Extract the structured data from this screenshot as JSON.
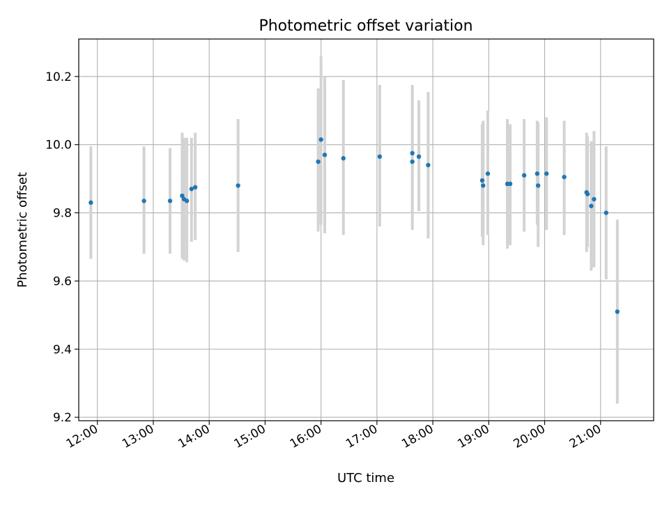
{
  "chart_data": {
    "type": "scatter",
    "title": "Photometric offset variation",
    "xlabel": "UTC time",
    "ylabel": "Photometric offset",
    "xlim": [
      "11:40",
      "21:57"
    ],
    "ylim": [
      9.19,
      10.31
    ],
    "grid": true,
    "x_ticks": [
      "12:00",
      "13:00",
      "14:00",
      "15:00",
      "16:00",
      "17:00",
      "18:00",
      "19:00",
      "20:00",
      "21:00"
    ],
    "y_ticks": [
      "9.2",
      "9.4",
      "9.6",
      "9.8",
      "10.0",
      "10.2"
    ],
    "colors": {
      "point": "#1f77b4",
      "errorbar": "#d3d3d3",
      "grid": "#b0b0b0"
    },
    "series": [
      {
        "points": [
          {
            "x": "11:53",
            "y": 9.83,
            "ylow": 9.665,
            "yhigh": 9.995
          },
          {
            "x": "12:50",
            "y": 9.835,
            "ylow": 9.68,
            "yhigh": 9.995
          },
          {
            "x": "13:18",
            "y": 9.835,
            "ylow": 9.68,
            "yhigh": 9.99
          },
          {
            "x": "13:31",
            "y": 9.85,
            "ylow": 9.665,
            "yhigh": 10.035
          },
          {
            "x": "13:33",
            "y": 9.84,
            "ylow": 9.66,
            "yhigh": 10.02
          },
          {
            "x": "13:36",
            "y": 9.835,
            "ylow": 9.655,
            "yhigh": 10.02
          },
          {
            "x": "13:41",
            "y": 9.87,
            "ylow": 9.715,
            "yhigh": 10.02
          },
          {
            "x": "13:45",
            "y": 9.875,
            "ylow": 9.72,
            "yhigh": 10.035
          },
          {
            "x": "14:31",
            "y": 9.88,
            "ylow": 9.685,
            "yhigh": 10.075
          },
          {
            "x": "15:57",
            "y": 9.95,
            "ylow": 9.745,
            "yhigh": 10.165
          },
          {
            "x": "16:00",
            "y": 10.015,
            "ylow": 9.765,
            "yhigh": 10.26
          },
          {
            "x": "16:04",
            "y": 9.97,
            "ylow": 9.74,
            "yhigh": 10.2
          },
          {
            "x": "16:24",
            "y": 9.96,
            "ylow": 9.735,
            "yhigh": 10.19
          },
          {
            "x": "17:03",
            "y": 9.965,
            "ylow": 9.76,
            "yhigh": 10.175
          },
          {
            "x": "17:38",
            "y": 9.975,
            "ylow": 9.8,
            "yhigh": 10.155
          },
          {
            "x": "17:38",
            "y": 9.95,
            "ylow": 9.75,
            "yhigh": 10.175
          },
          {
            "x": "17:45",
            "y": 9.965,
            "ylow": 9.805,
            "yhigh": 10.13
          },
          {
            "x": "17:55",
            "y": 9.94,
            "ylow": 9.725,
            "yhigh": 10.155
          },
          {
            "x": "18:53",
            "y": 9.895,
            "ylow": 9.73,
            "yhigh": 10.06
          },
          {
            "x": "18:54",
            "y": 9.88,
            "ylow": 9.705,
            "yhigh": 10.07
          },
          {
            "x": "18:59",
            "y": 9.915,
            "ylow": 9.735,
            "yhigh": 10.1
          },
          {
            "x": "19:20",
            "y": 9.885,
            "ylow": 9.695,
            "yhigh": 10.075
          },
          {
            "x": "19:23",
            "y": 9.885,
            "ylow": 9.705,
            "yhigh": 10.06
          },
          {
            "x": "19:38",
            "y": 9.91,
            "ylow": 9.745,
            "yhigh": 10.075
          },
          {
            "x": "19:52",
            "y": 9.915,
            "ylow": 9.765,
            "yhigh": 10.07
          },
          {
            "x": "19:53",
            "y": 9.88,
            "ylow": 9.7,
            "yhigh": 10.065
          },
          {
            "x": "20:02",
            "y": 9.915,
            "ylow": 9.75,
            "yhigh": 10.08
          },
          {
            "x": "20:21",
            "y": 9.905,
            "ylow": 9.735,
            "yhigh": 10.07
          },
          {
            "x": "20:45",
            "y": 9.86,
            "ylow": 9.685,
            "yhigh": 10.035
          },
          {
            "x": "20:46",
            "y": 9.855,
            "ylow": 9.7,
            "yhigh": 10.025
          },
          {
            "x": "20:50",
            "y": 9.82,
            "ylow": 9.63,
            "yhigh": 10.01
          },
          {
            "x": "20:53",
            "y": 9.84,
            "ylow": 9.64,
            "yhigh": 10.04
          },
          {
            "x": "21:06",
            "y": 9.8,
            "ylow": 9.605,
            "yhigh": 9.995
          },
          {
            "x": "21:18",
            "y": 9.51,
            "ylow": 9.24,
            "yhigh": 9.78
          }
        ]
      }
    ]
  }
}
